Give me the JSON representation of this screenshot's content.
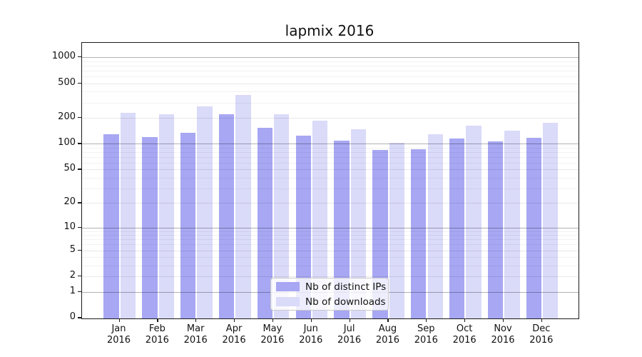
{
  "title": "lapmix 2016",
  "chart_data": {
    "type": "bar",
    "title": "lapmix 2016",
    "categories": [
      "Jan 2016",
      "Feb 2016",
      "Mar 2016",
      "Apr 2016",
      "May 2016",
      "Jun 2016",
      "Jul 2016",
      "Aug 2016",
      "Sep 2016",
      "Oct 2016",
      "Nov 2016",
      "Dec 2016"
    ],
    "series": [
      {
        "name": "Nb of distinct IPs",
        "color": "#a7a7f3",
        "values": [
          128,
          119,
          135,
          219,
          152,
          124,
          109,
          84,
          86,
          114,
          107,
          117
        ]
      },
      {
        "name": "Nb of downloads",
        "color": "#dadaf9",
        "values": [
          227,
          220,
          272,
          368,
          218,
          185,
          147,
          102,
          129,
          162,
          141,
          176
        ]
      }
    ],
    "xlabel": "",
    "ylabel": "",
    "yscale": "log1p",
    "ylim": [
      0,
      1460
    ],
    "y_ticks": [
      0,
      1,
      2,
      5,
      10,
      20,
      50,
      100,
      200,
      500,
      1000
    ],
    "y_major_gridlines": [
      1,
      10,
      100,
      1000
    ],
    "y_minor_gridlines": [
      3,
      4,
      6,
      7,
      8,
      9,
      30,
      40,
      60,
      70,
      80,
      90,
      300,
      400,
      600,
      700,
      800,
      900
    ],
    "grid": true,
    "axis_color": "#1a1a1a",
    "background_color": "#ffffff",
    "legend": {
      "position": "inside-bottom-center",
      "items": [
        "Nb of distinct IPs",
        "Nb of downloads"
      ]
    }
  }
}
